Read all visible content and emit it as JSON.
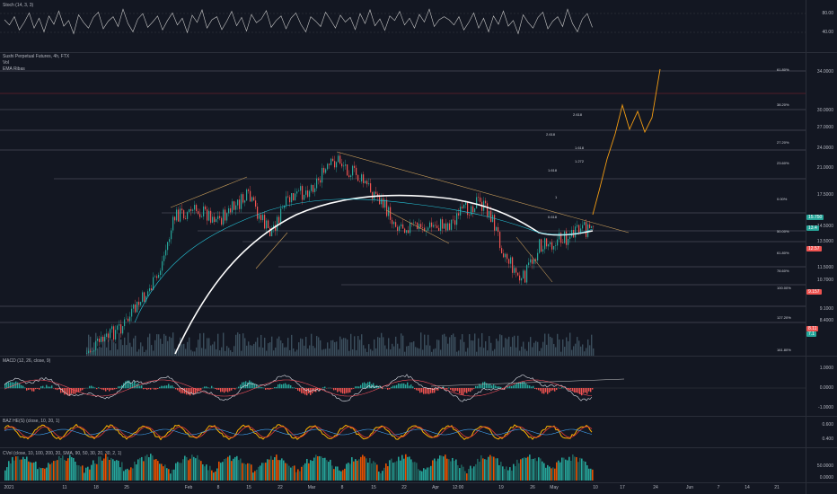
{
  "stoch": {
    "label": "Stoch (14, 3, 3)",
    "ticks": [
      "80.00",
      "40.00"
    ],
    "values": [
      62,
      48,
      70,
      35,
      55,
      80,
      40,
      66,
      30,
      72,
      50,
      85,
      45,
      60,
      25,
      75,
      55,
      40,
      68,
      82,
      38,
      58,
      70,
      44,
      90,
      52,
      30,
      64,
      78,
      42,
      56,
      72,
      35,
      60,
      80,
      48,
      66,
      28,
      74,
      55,
      88,
      40,
      62,
      70,
      36,
      58,
      84,
      46,
      68,
      32,
      76,
      54,
      64,
      86,
      42,
      60,
      72,
      38,
      66,
      80,
      50,
      30,
      70,
      58,
      44,
      82,
      62,
      40,
      74,
      56,
      68,
      36,
      78,
      52,
      88,
      46,
      64,
      34,
      72,
      60,
      84,
      48,
      66,
      40,
      76,
      56,
      90,
      44,
      62,
      70
    ]
  },
  "main": {
    "title": "Sushi Perpetual Futures, 4h, FTX",
    "vol": "Vol",
    "ema": "EMA Ribas",
    "price_ticks": [
      "34.0000",
      "30.0000",
      "27.0000",
      "24.0000",
      "21.0000",
      "17.5000",
      "14.5000",
      "13.5000",
      "11.5000",
      "10.7000",
      "9.1000",
      "8.4000"
    ],
    "fib_left": [
      "2.618",
      "2.618",
      "1.618",
      "1.618",
      "1.272",
      "1",
      "0.618"
    ],
    "fib_right": [
      "61.80%",
      "38.20%",
      "27.20%",
      "23.60%",
      "0.00%",
      "50.00%",
      "61.80%",
      "78.60%",
      "100.00%",
      "127.20%",
      "161.80%"
    ],
    "price_tags": [
      {
        "text": "15.750",
        "color": "#26a69a"
      },
      {
        "text": "13.4",
        "color": "#26a69a"
      },
      {
        "text": "12.57",
        "color": "#ef5350"
      },
      {
        "text": "9.157",
        "color": "#ef5350"
      },
      {
        "text": "8.11",
        "color": "#ef5350"
      },
      {
        "text": "7.1",
        "color": "#26a69a"
      }
    ]
  },
  "macd": {
    "label": "MACD (12, 26, close, 9)",
    "ticks": [
      "1.0000",
      "0.0000",
      "-1.0000"
    ]
  },
  "baz": {
    "label": "BAZ HE(S) (close, 10, 20, 1)",
    "ticks": [
      "0.600",
      "0.400"
    ]
  },
  "vol_pane": {
    "label": "CVol (close, 10, 100, 200, 20, SMA, 90, 50, 30, 20, 30, 2, 1)",
    "ticks": [
      "50.0000",
      "0.0000"
    ]
  },
  "x_axis": [
    "2021",
    "11",
    "18",
    "25",
    "Feb",
    "8",
    "15",
    "22",
    "Mar",
    "8",
    "15",
    "22",
    "Apr",
    "12:00",
    "19",
    "26",
    "May",
    "10",
    "17",
    "24",
    "Jun",
    "7",
    "14",
    "21"
  ],
  "colors": {
    "up": "#26a69a",
    "down": "#ef5350",
    "projection": "#f39c12",
    "ema": "#ffffff"
  }
}
